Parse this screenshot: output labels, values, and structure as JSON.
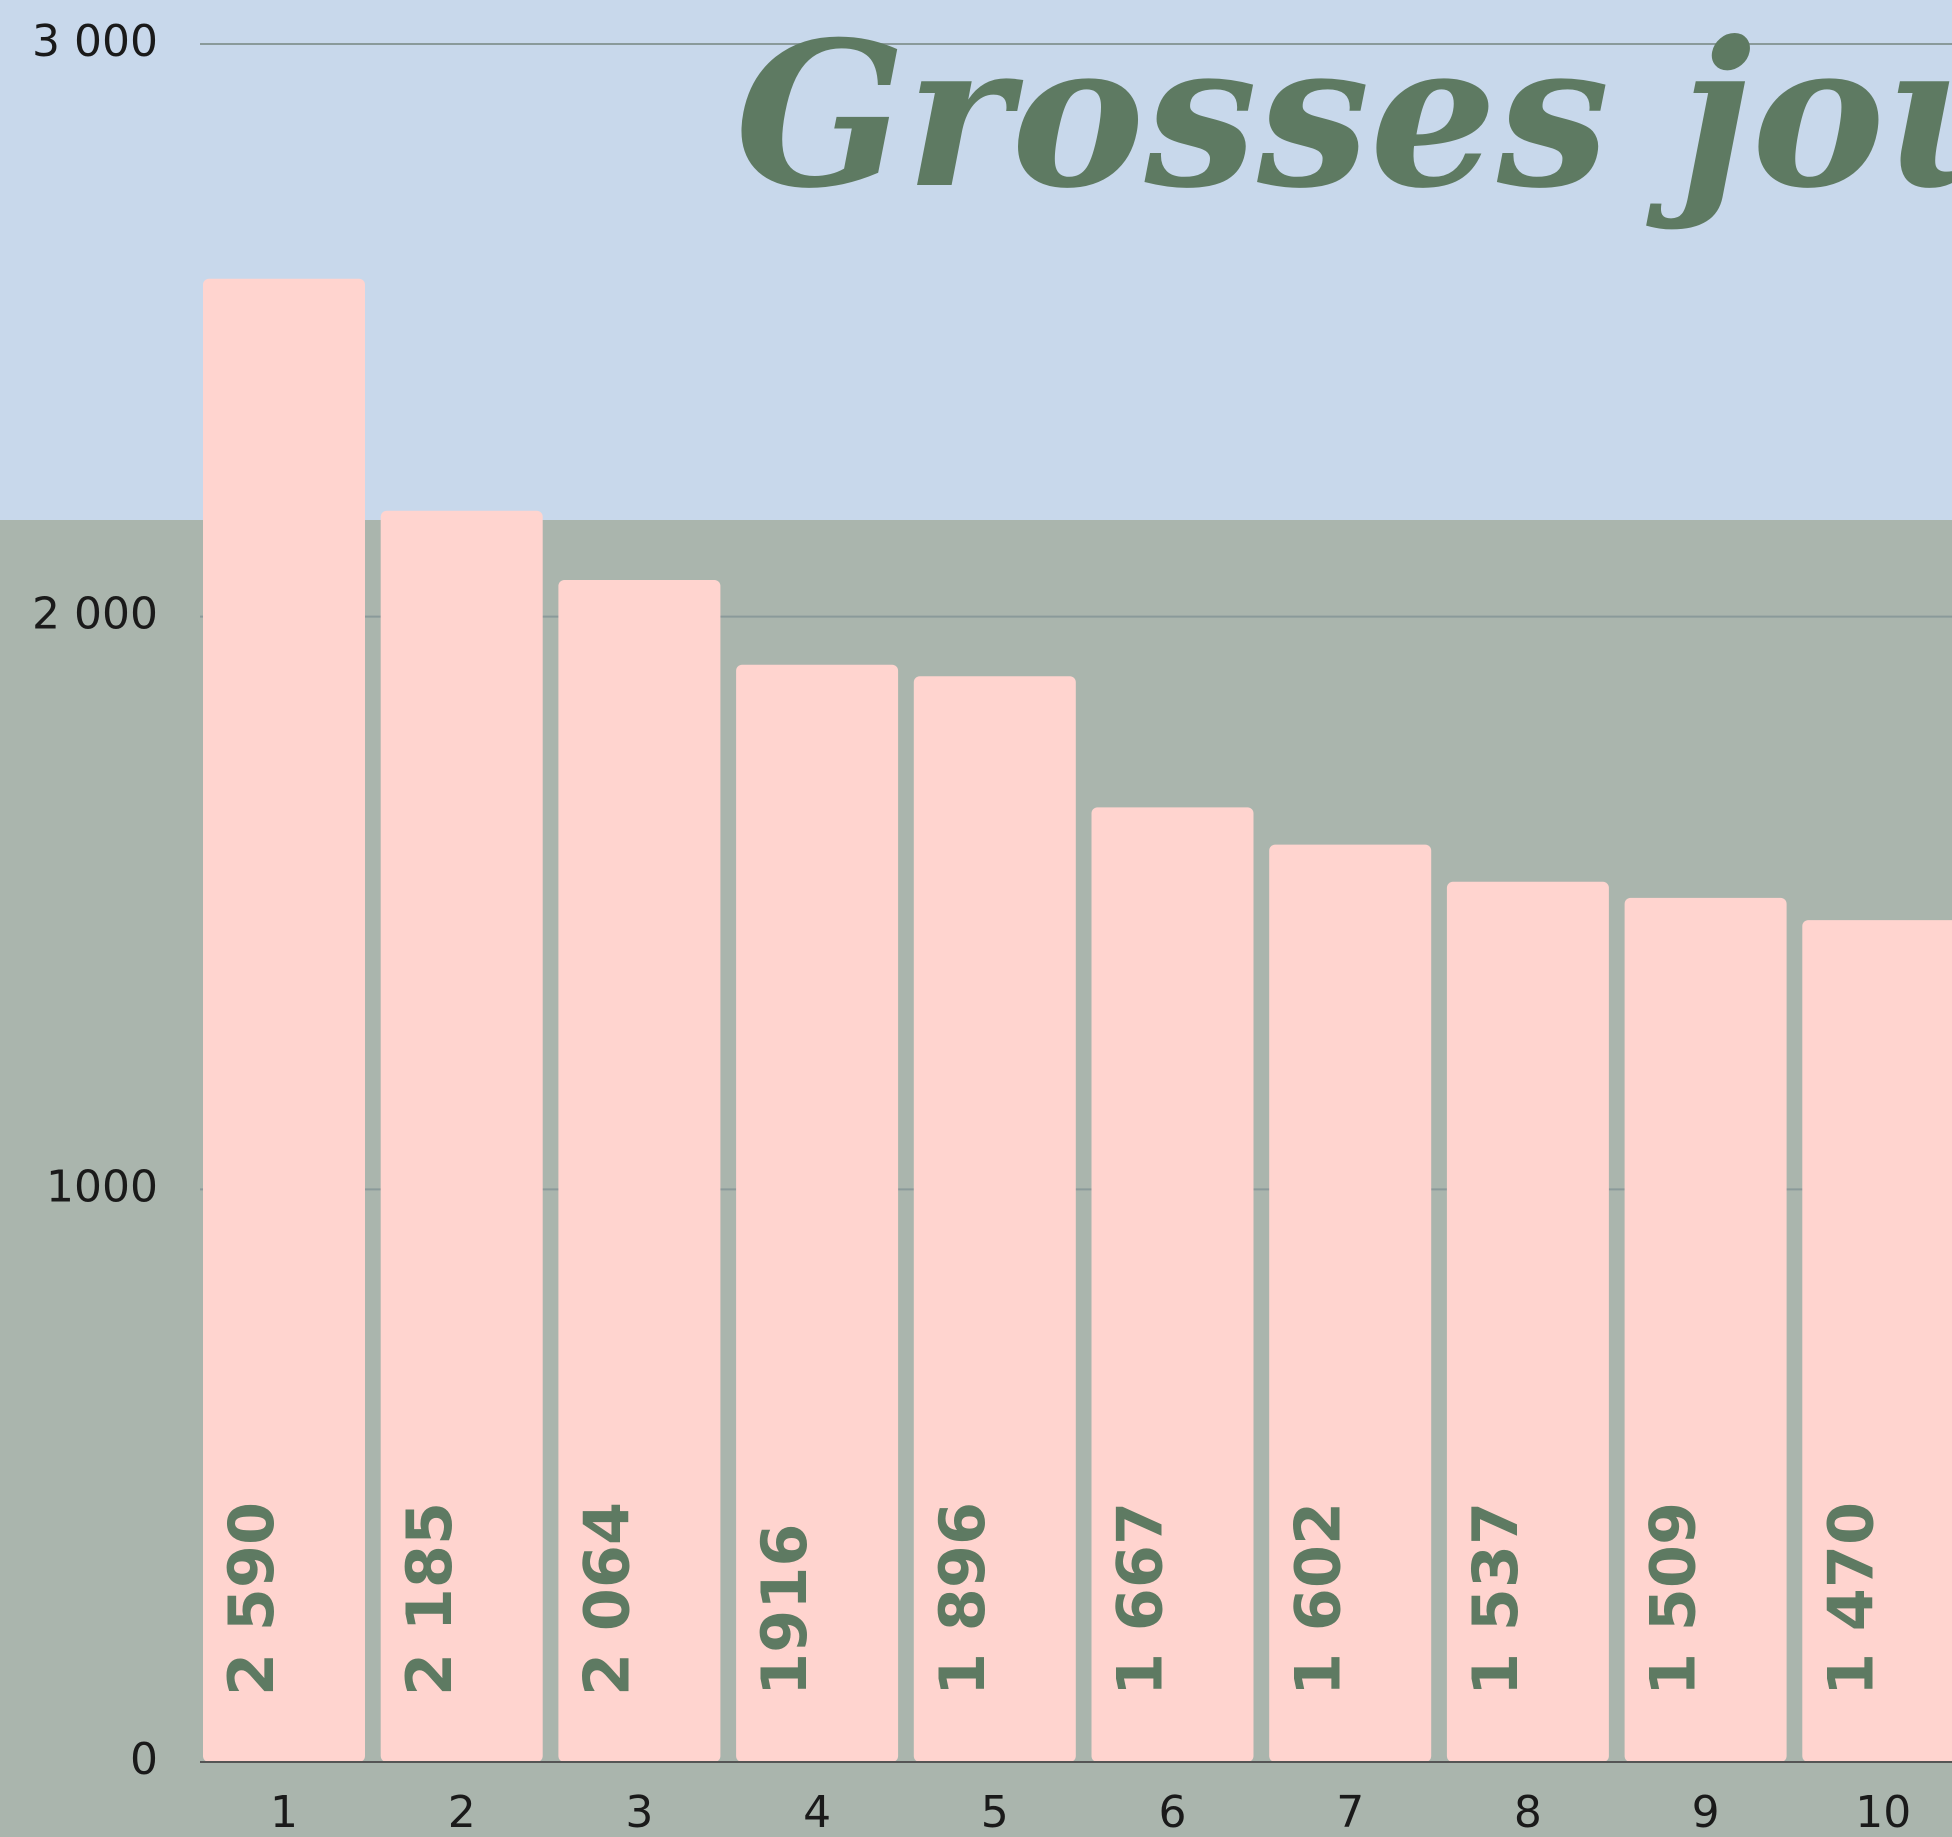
{
  "chart_data": {
    "type": "bar",
    "title": "Grosses jours",
    "categories": [
      "1",
      "2",
      "3",
      "4",
      "5",
      "6",
      "7",
      "8",
      "9",
      "10"
    ],
    "values": [
      2590,
      2185,
      2064,
      1916,
      1896,
      1667,
      1602,
      1537,
      1509,
      1470
    ],
    "value_labels": [
      "2 590",
      "2 185",
      "2 064",
      "1916",
      "1 896",
      "1 667",
      "1 602",
      "1 537",
      "1 509",
      "1 470"
    ],
    "color": "#ffd4cf",
    "ylim": [
      0,
      3000
    ],
    "yticks": [
      0,
      1000,
      {
        "value": 2000,
        "label": "2 000"
      },
      {
        "value": 3000,
        "label": "3 000"
      }
    ],
    "grid": true
  }
}
